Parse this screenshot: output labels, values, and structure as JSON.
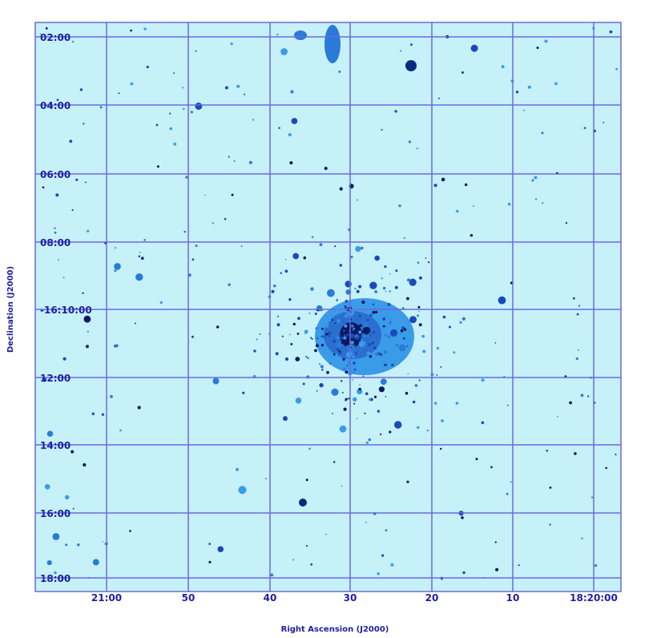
{
  "x_axis": {
    "label": "Right Ascension (J2000)",
    "ticks": [
      "21:00",
      "50",
      "40",
      "30",
      "20",
      "10",
      "18:20:00"
    ]
  },
  "y_axis": {
    "label": "Declination (J2000)",
    "ticks": [
      "02:00",
      "04:00",
      "06:00",
      "08:00",
      "-16:10:00",
      "12:00",
      "14:00",
      "16:00",
      "18:00"
    ]
  }
}
